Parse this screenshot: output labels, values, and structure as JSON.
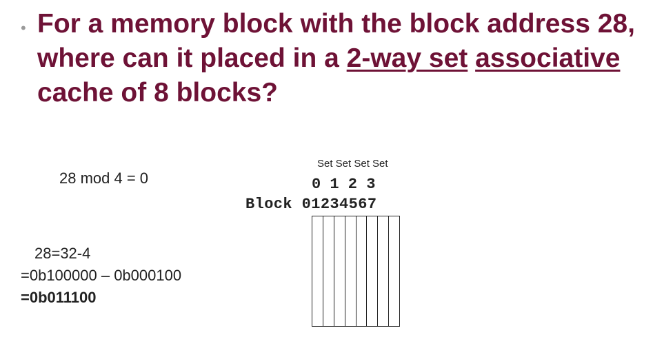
{
  "slide": {
    "bullet": "•",
    "question_part1": "For a memory block with the block address 28, where can it placed in a ",
    "question_underlined1": "2-way set",
    "question_space": " ",
    "question_underlined2": "associative",
    "question_part2": " cache of 8 blocks?"
  },
  "work": {
    "mod_line": "28 mod 4 = 0",
    "line1": "28=32-4",
    "line2": "=0b100000 – 0b000100",
    "line3": "=0b011100"
  },
  "diagram": {
    "set_labels": "Set Set Set Set",
    "set_numbers": "0 1 2 3",
    "block_row": "Block 01234567",
    "cells": [
      "",
      "",
      "",
      "",
      "",
      "",
      "",
      ""
    ]
  }
}
